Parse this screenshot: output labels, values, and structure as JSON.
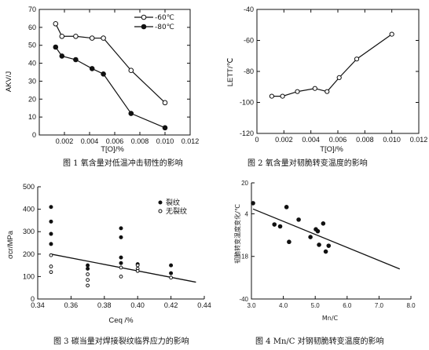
{
  "chart_data": [
    {
      "type": "line",
      "caption": "图 1  氧含量对低温冲击韧性的影响",
      "ylabel": "AKV/J",
      "xlabel": "T[O]/%",
      "xlim": [
        0,
        0.012
      ],
      "ylim": [
        0,
        70
      ],
      "xticks": [
        "0.002",
        "0.004",
        "0.006",
        "0.008",
        "0.010",
        "0.012"
      ],
      "yticks": [
        "0",
        "10",
        "20",
        "30",
        "40",
        "50",
        "60",
        "70"
      ],
      "legend_position": "top-right",
      "series": [
        {
          "name": "-60℃",
          "marker": "open-circle",
          "x": [
            0.0013,
            0.0018,
            0.0029,
            0.0042,
            0.0051,
            0.0073,
            0.01
          ],
          "values": [
            62,
            55,
            55,
            54,
            54,
            36,
            18
          ]
        },
        {
          "name": "-80℃",
          "marker": "filled-circle",
          "x": [
            0.0013,
            0.0018,
            0.0029,
            0.0042,
            0.0051,
            0.0073,
            0.01
          ],
          "values": [
            49,
            44,
            42,
            37,
            34,
            12,
            4
          ]
        }
      ]
    },
    {
      "type": "line",
      "caption": "图 2  氧含量对韧脆转变温度的影响",
      "ylabel": "LETT/℃",
      "xlabel": "T[O]/%",
      "xlim": [
        0,
        0.012
      ],
      "ylim": [
        -120,
        -40
      ],
      "xticks": [
        "0",
        "0.002",
        "0.004",
        "0.006",
        "0.008",
        "0.010",
        "0.012"
      ],
      "yticks": [
        "-120",
        "-100",
        "-80",
        "-60",
        "-40"
      ],
      "series": [
        {
          "x": [
            0.0011,
            0.0019,
            0.003,
            0.0043,
            0.0052,
            0.0061,
            0.0074,
            0.01
          ],
          "values": [
            -96,
            -96,
            -93,
            -91,
            -93,
            -84,
            -72,
            -56
          ]
        }
      ]
    },
    {
      "type": "scatter",
      "caption": "图 3  碳当量对焊接裂纹临界应力的影响",
      "ylabel": "σcr/MPa",
      "xlabel": "Ceq /%",
      "xlim": [
        0.34,
        0.44
      ],
      "ylim": [
        0,
        500
      ],
      "xticks": [
        "0.34",
        "0.36",
        "0.38",
        "0.40",
        "0.42",
        "0.44"
      ],
      "yticks": [
        "0",
        "100",
        "200",
        "300",
        "400",
        "500"
      ],
      "legend_position": "top-right",
      "series": [
        {
          "name": "裂纹",
          "marker": "filled-circle",
          "x": [
            0.348,
            0.348,
            0.348,
            0.348,
            0.37,
            0.37,
            0.39,
            0.39,
            0.39,
            0.39,
            0.4,
            0.42,
            0.42
          ],
          "values": [
            410,
            345,
            290,
            245,
            150,
            135,
            315,
            275,
            185,
            160,
            155,
            150,
            115
          ]
        },
        {
          "name": "无裂纹",
          "marker": "open-circle",
          "x": [
            0.348,
            0.348,
            0.348,
            0.37,
            0.37,
            0.37,
            0.39,
            0.39,
            0.4,
            0.4,
            0.4,
            0.42
          ],
          "values": [
            195,
            145,
            120,
            110,
            85,
            60,
            140,
            100,
            150,
            135,
            125,
            95
          ]
        }
      ],
      "trend_line": {
        "x": [
          0.348,
          0.435
        ],
        "values": [
          200,
          75
        ]
      }
    },
    {
      "type": "scatter",
      "caption": "图 4 Mn/C 对钢韧脆转变温度的影响",
      "ylabel": "韧脆转变温度变化/℃",
      "xlabel": "Mn/C",
      "xlim": [
        3.0,
        8.0
      ],
      "ylim": [
        -40,
        20
      ],
      "xticks": [
        "3.0",
        "4.0",
        "5.0",
        "6.0",
        "7.0",
        "8.0"
      ],
      "yticks": [
        "-40",
        "-18",
        "4",
        "20"
      ],
      "series": [
        {
          "marker": "filled-circle",
          "x": [
            3.05,
            3.72,
            3.9,
            4.1,
            4.18,
            4.48,
            4.85,
            5.02,
            5.08,
            5.12,
            5.25,
            5.33,
            5.42
          ],
          "values": [
            9.5,
            -1.5,
            -2.5,
            7.5,
            -10.5,
            1.0,
            -8.0,
            -4.0,
            -5.0,
            -12.0,
            -1.0,
            -15.5,
            -12.5
          ]
        }
      ],
      "trend_line": {
        "x": [
          3.05,
          7.65
        ],
        "values": [
          6.5,
          -24.5
        ]
      }
    }
  ]
}
